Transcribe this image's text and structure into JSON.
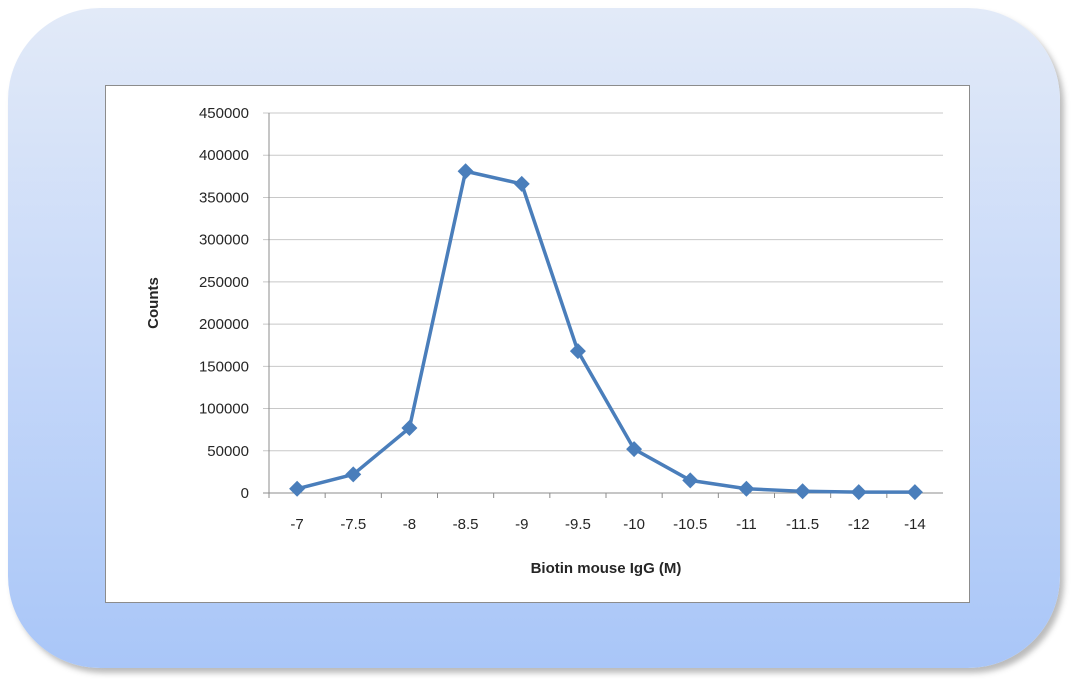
{
  "chart_data": {
    "type": "line",
    "title": "",
    "xlabel": "Biotin mouse IgG (M)",
    "ylabel": "Counts",
    "categories": [
      "-7",
      "-7.5",
      "-8",
      "-8.5",
      "-9",
      "-9.5",
      "-10",
      "-10.5",
      "-11",
      "-11.5",
      "-12",
      "-14"
    ],
    "series": [
      {
        "values": [
          5000,
          22000,
          77000,
          381000,
          366000,
          168000,
          52000,
          15000,
          5000,
          2000,
          1000,
          1000
        ],
        "color": "#4a7ebb",
        "marker": "diamond"
      }
    ],
    "ylim": [
      0,
      450000
    ],
    "yticks": [
      0,
      50000,
      100000,
      150000,
      200000,
      250000,
      300000,
      350000,
      400000,
      450000
    ],
    "grid": true,
    "legend": "none"
  },
  "colors": {
    "frame_top": "#e2eaf8",
    "frame_bottom": "#a9c6f8",
    "gridline": "#c8c8c8",
    "series": "#4a7ebb"
  }
}
